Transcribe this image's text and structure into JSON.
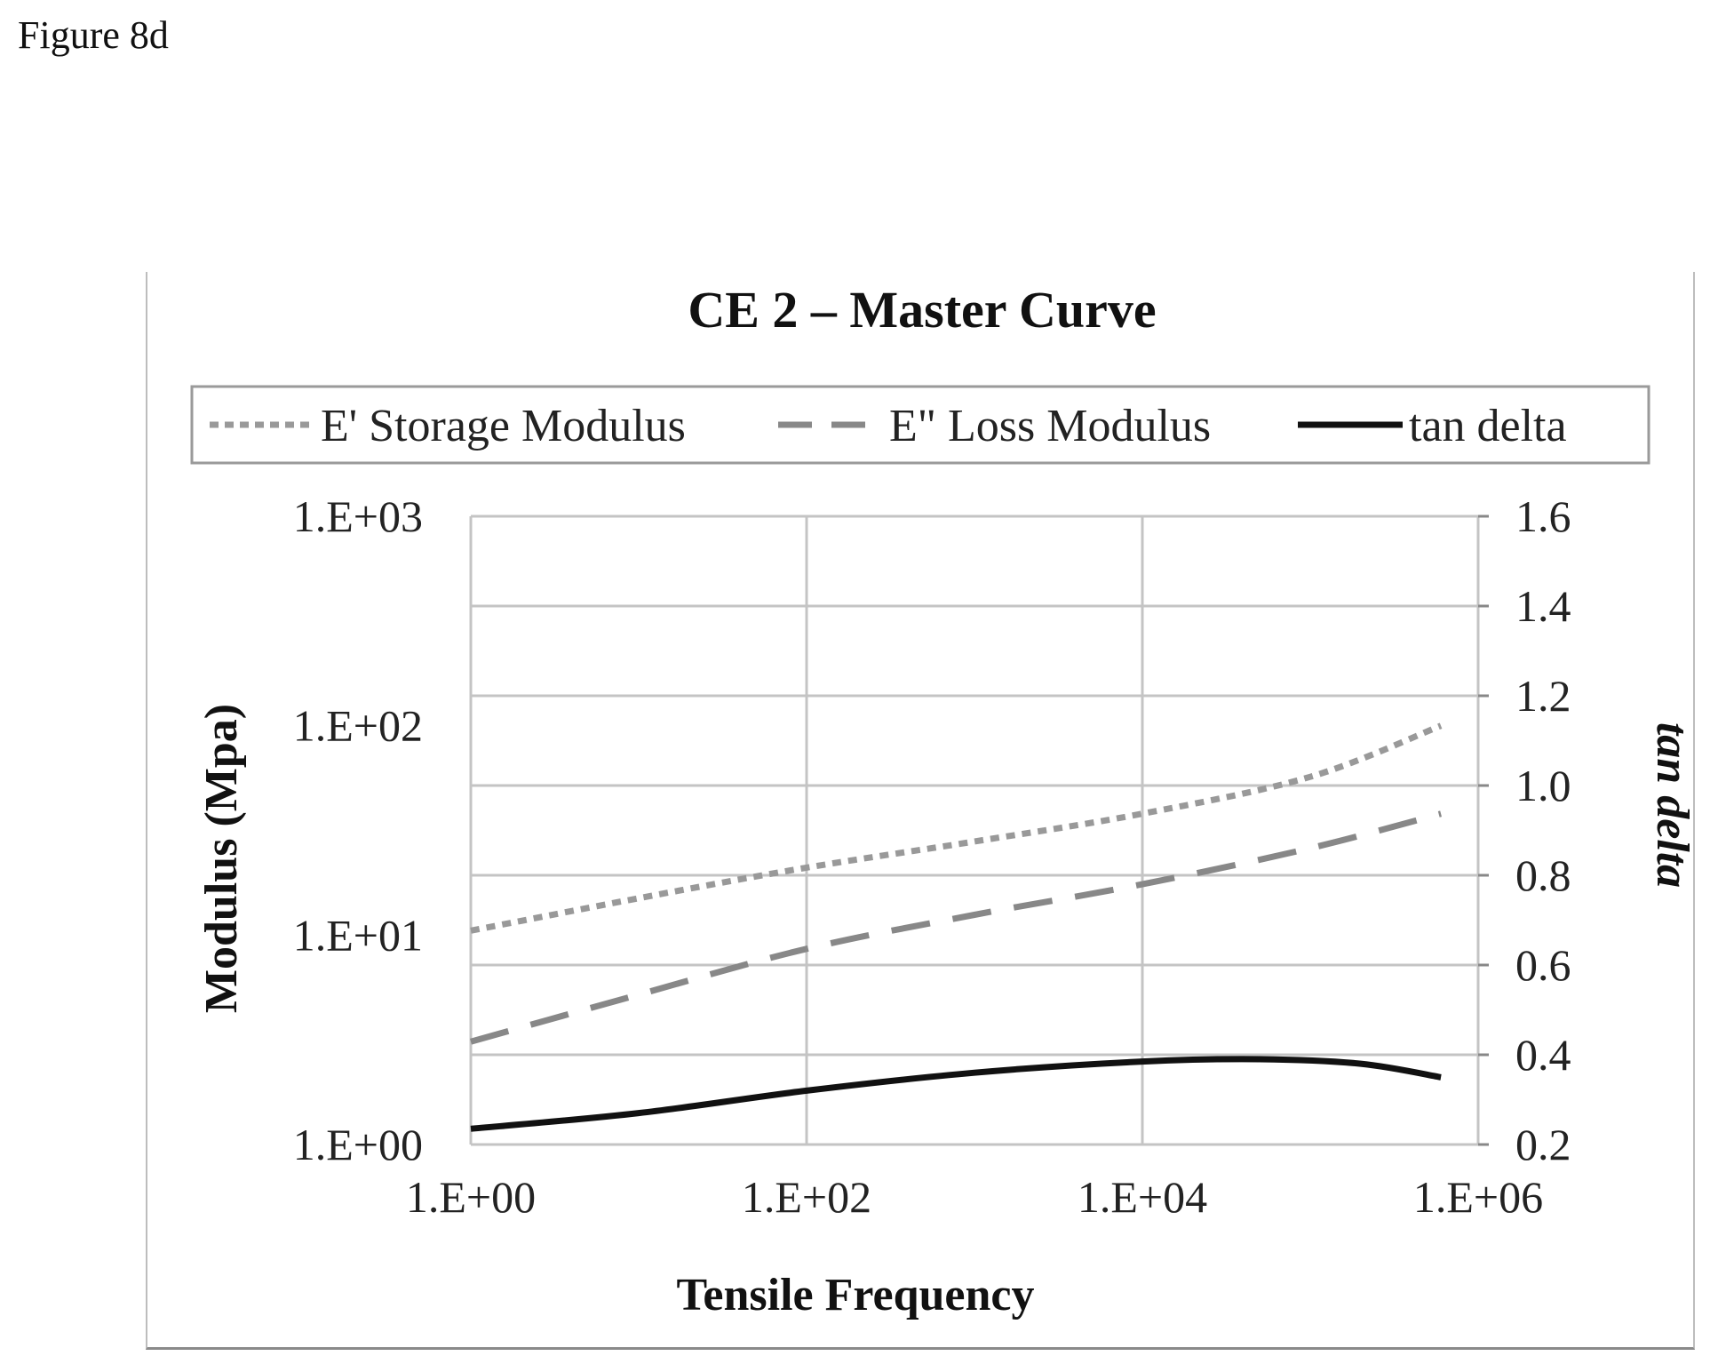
{
  "figure_label": "Figure 8d",
  "chart_data": {
    "type": "line",
    "title": "CE 2 – Master Curve",
    "xlabel": "Tensile Frequency",
    "ylabel": "Modulus (Mpa)",
    "y2label": "tan delta",
    "x_scale": "log",
    "y_scale": "log",
    "xlim": [
      1,
      1000000
    ],
    "ylim": [
      1,
      1000
    ],
    "y2lim": [
      0.2,
      1.6
    ],
    "x_ticks": [
      "1.E+00",
      "1.E+02",
      "1.E+04",
      "1.E+06"
    ],
    "y_ticks": [
      "1.E+00",
      "1.E+01",
      "1.E+02",
      "1.E+03"
    ],
    "y2_ticks": [
      "0.2",
      "0.4",
      "0.6",
      "0.8",
      "1.0",
      "1.2",
      "1.4",
      "1.6"
    ],
    "grid": true,
    "legend_placement": "top",
    "series": [
      {
        "name": "E' Storage Modulus",
        "axis": "left",
        "style": "dotted",
        "color": "#999999",
        "x": [
          1,
          10,
          100,
          1000,
          10000,
          100000,
          600000
        ],
        "y": [
          10.5,
          15,
          21,
          28,
          38,
          57,
          100
        ]
      },
      {
        "name": "E\" Loss Modulus",
        "axis": "left",
        "style": "dashed",
        "color": "#888888",
        "x": [
          1,
          10,
          100,
          1000,
          10000,
          100000,
          600000
        ],
        "y": [
          3.1,
          5.2,
          8.6,
          12.5,
          17.5,
          26,
          38
        ]
      },
      {
        "name": "tan delta",
        "axis": "right",
        "style": "solid",
        "color": "#111111",
        "x": [
          1,
          10,
          100,
          1000,
          10000,
          50000,
          200000,
          600000
        ],
        "y": [
          0.235,
          0.27,
          0.32,
          0.36,
          0.385,
          0.39,
          0.38,
          0.35
        ]
      }
    ]
  }
}
